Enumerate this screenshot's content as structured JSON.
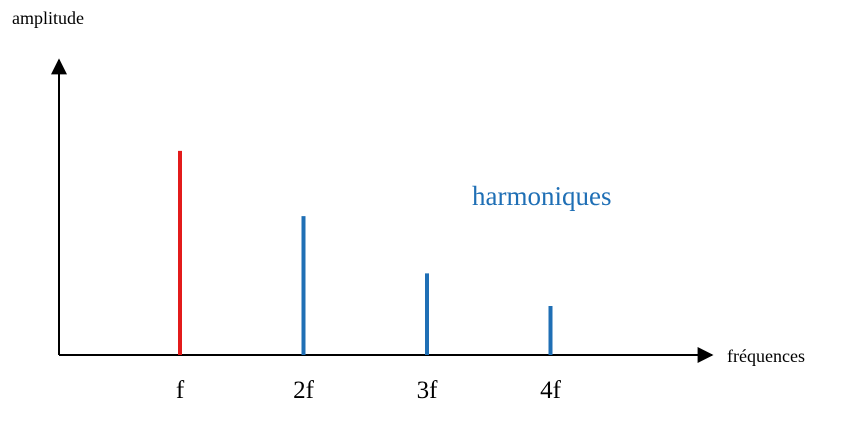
{
  "chart_data": {
    "type": "bar",
    "title": "",
    "ylabel": "amplitude",
    "xlabel": "fréquences",
    "categories": [
      "f",
      "2f",
      "3f",
      "4f"
    ],
    "values": [
      100,
      68,
      40,
      24
    ],
    "ylim": [
      0,
      120
    ],
    "grid": false,
    "annotation": "harmoniques",
    "colors": {
      "fundamental": "#e31b1b",
      "harmonic": "#1f6fb5",
      "axis": "#000000",
      "annotation": "#1f6fb5"
    }
  }
}
